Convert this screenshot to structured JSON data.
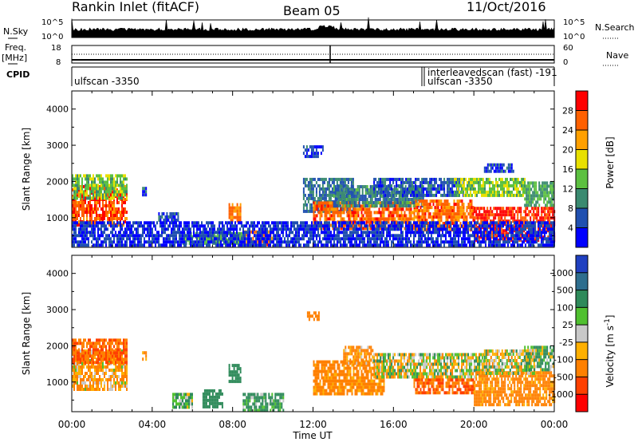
{
  "header": {
    "station": "Rankin Inlet (fitACF)",
    "beam": "Beam 05",
    "date": "11/Oct/2016"
  },
  "strip_panels": {
    "nsky": {
      "label": "N.Sky",
      "ticks": [
        "10^5",
        "10^0"
      ]
    },
    "nsearch": {
      "label": "N.Search",
      "ticks": [
        "10^5",
        "10^0"
      ]
    },
    "freq": {
      "label": "Freq.",
      "unit": "[MHz]",
      "ticks": [
        "18",
        "8"
      ]
    },
    "nave": {
      "label": "Nave",
      "ticks": [
        "60",
        "0"
      ]
    },
    "cpid": {
      "label": "CPID",
      "entries": [
        {
          "text": "ulfscan -3350",
          "start": "00:00"
        },
        {
          "text": "interleavedscan (fast) -191",
          "start": "17:30"
        },
        {
          "text": "ulfscan -3350",
          "start": "17:35"
        }
      ]
    }
  },
  "chart_data": [
    {
      "type": "heatmap",
      "panel": "power",
      "ylabel": "Slant Range [km]",
      "xlabel": "Time UT",
      "x_ticks": [
        "00:00",
        "04:00",
        "08:00",
        "12:00",
        "16:00",
        "20:00",
        "00:00"
      ],
      "xlim_hours": [
        0,
        24
      ],
      "ylim": [
        180,
        4500
      ],
      "y_ticks": [
        1000,
        2000,
        3000,
        4000
      ],
      "colorbar": {
        "label": "Power [dB]",
        "ticks": [
          4,
          8,
          12,
          16,
          20,
          24,
          28
        ],
        "range": [
          0,
          32
        ],
        "colors": [
          "#0000ff",
          "#2050b0",
          "#3a8a70",
          "#5cc040",
          "#e8e000",
          "#ffa000",
          "#ff6000",
          "#ff0000"
        ]
      },
      "echo_regions": [
        {
          "t0": 0.0,
          "t1": 2.7,
          "r0": 800,
          "r1": 1900,
          "level": 27
        },
        {
          "t0": 0.0,
          "t1": 2.7,
          "r0": 1500,
          "r1": 2200,
          "level": 14
        },
        {
          "t0": 3.5,
          "t1": 3.7,
          "r0": 1600,
          "r1": 1850,
          "level": 6
        },
        {
          "t0": 4.3,
          "t1": 5.3,
          "r0": 900,
          "r1": 1150,
          "level": 5
        },
        {
          "t0": 5.5,
          "t1": 6.3,
          "r0": 300,
          "r1": 600,
          "level": 14
        },
        {
          "t0": 6.5,
          "t1": 8.5,
          "r0": 250,
          "r1": 600,
          "level": 12
        },
        {
          "t0": 7.8,
          "t1": 8.4,
          "r0": 900,
          "r1": 1400,
          "level": 24
        },
        {
          "t0": 8.5,
          "t1": 10.0,
          "r0": 250,
          "r1": 650,
          "level": 25
        },
        {
          "t0": 11.5,
          "t1": 12.5,
          "r0": 2700,
          "r1": 3000,
          "level": 5
        },
        {
          "t0": 11.5,
          "t1": 14.0,
          "r0": 1200,
          "r1": 2100,
          "level": 8
        },
        {
          "t0": 12.0,
          "t1": 17.0,
          "r0": 700,
          "r1": 1450,
          "level": 26
        },
        {
          "t0": 13.0,
          "t1": 17.5,
          "r0": 1300,
          "r1": 1900,
          "level": 9
        },
        {
          "t0": 15.0,
          "t1": 19.5,
          "r0": 1600,
          "r1": 2100,
          "level": 6
        },
        {
          "t0": 17.0,
          "t1": 20.0,
          "r0": 700,
          "r1": 1500,
          "level": 25
        },
        {
          "t0": 19.0,
          "t1": 22.5,
          "r0": 1600,
          "r1": 2100,
          "level": 15
        },
        {
          "t0": 20.0,
          "t1": 24.0,
          "r0": 350,
          "r1": 1300,
          "level": 29
        },
        {
          "t0": 20.5,
          "t1": 22.0,
          "r0": 2300,
          "r1": 2500,
          "level": 5
        },
        {
          "t0": 22.5,
          "t1": 24.0,
          "r0": 1300,
          "r1": 2000,
          "level": 12
        },
        {
          "t0": 0.0,
          "t1": 24.0,
          "r0": 200,
          "r1": 900,
          "level": 4
        }
      ]
    },
    {
      "type": "heatmap",
      "panel": "velocity",
      "ylabel": "Slant Range [km]",
      "xlabel": "Time UT",
      "x_ticks": [
        "00:00",
        "04:00",
        "08:00",
        "12:00",
        "16:00",
        "20:00",
        "00:00"
      ],
      "xlim_hours": [
        0,
        24
      ],
      "ylim": [
        180,
        4500
      ],
      "y_ticks": [
        1000,
        2000,
        3000,
        4000
      ],
      "colorbar": {
        "label": "Velocity [m s^-1]",
        "ticks": [
          "1000",
          "500",
          "100",
          "25",
          "-25",
          "-100",
          "-500",
          "-1000"
        ],
        "colors": [
          "#2040c0",
          "#2e6e8e",
          "#2e8a5a",
          "#50c030",
          "#c8c8c8",
          "#ffb000",
          "#ff8000",
          "#ff4000",
          "#ff0000"
        ]
      },
      "echo_regions": [
        {
          "t0": 0.0,
          "t1": 2.7,
          "r0": 800,
          "r1": 1900,
          "velocity": -100
        },
        {
          "t0": 0.0,
          "t1": 2.7,
          "r0": 1500,
          "r1": 2200,
          "velocity": -500
        },
        {
          "t0": 3.5,
          "t1": 3.7,
          "r0": 1600,
          "r1": 1850,
          "velocity": -100
        },
        {
          "t0": 5.0,
          "t1": 6.0,
          "r0": 300,
          "r1": 700,
          "velocity": 100
        },
        {
          "t0": 6.5,
          "t1": 7.5,
          "r0": 300,
          "r1": 800,
          "velocity": 300
        },
        {
          "t0": 7.8,
          "t1": 8.4,
          "r0": 1000,
          "r1": 1500,
          "velocity": 300
        },
        {
          "t0": 8.5,
          "t1": 10.5,
          "r0": 250,
          "r1": 700,
          "velocity": 150
        },
        {
          "t0": 11.7,
          "t1": 12.3,
          "r0": 2700,
          "r1": 2950,
          "velocity": -300
        },
        {
          "t0": 12.0,
          "t1": 15.5,
          "r0": 700,
          "r1": 1600,
          "velocity": -200
        },
        {
          "t0": 13.5,
          "t1": 15.0,
          "r0": 1500,
          "r1": 2000,
          "velocity": -150
        },
        {
          "t0": 15.0,
          "t1": 20.5,
          "r0": 1100,
          "r1": 1800,
          "velocity": 0
        },
        {
          "t0": 17.0,
          "t1": 20.0,
          "r0": 700,
          "r1": 1100,
          "velocity": -500
        },
        {
          "t0": 20.0,
          "t1": 24.0,
          "r0": 400,
          "r1": 1300,
          "velocity": -200
        },
        {
          "t0": 20.5,
          "t1": 23.0,
          "r0": 1200,
          "r1": 1900,
          "velocity": 0
        },
        {
          "t0": 22.5,
          "t1": 24.0,
          "r0": 1300,
          "r1": 2000,
          "velocity": 100
        }
      ]
    }
  ]
}
